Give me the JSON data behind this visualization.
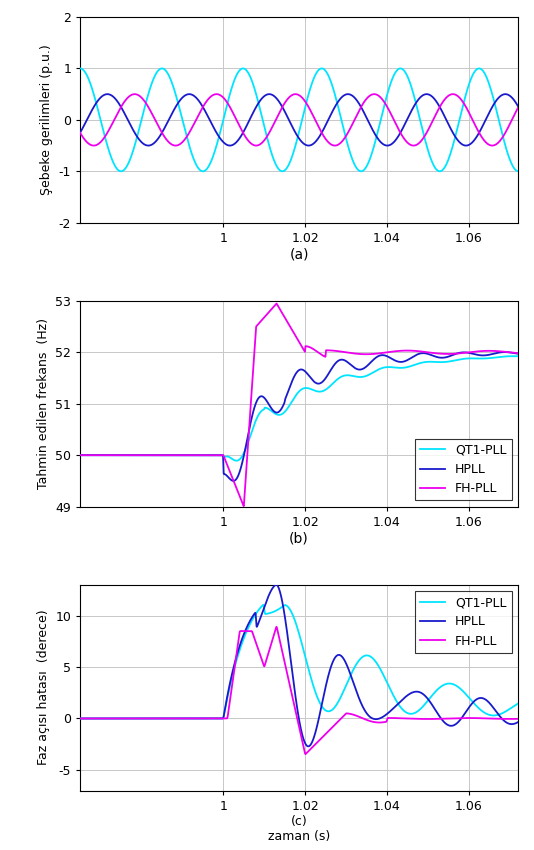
{
  "subplot_a": {
    "ylabel": "Şebeke gerilimleri (p.u.)",
    "xlabel": "(a)",
    "xlim": [
      0.965,
      1.072
    ],
    "ylim": [
      -2,
      2
    ],
    "yticks": [
      -2,
      -1,
      0,
      1,
      2
    ],
    "xticks": [
      1.0,
      1.02,
      1.04,
      1.06
    ],
    "xtick_labels": [
      "1",
      "1.02",
      "1.04",
      "1.06"
    ]
  },
  "subplot_b": {
    "ylabel": "Tahmin edilen frekans  (Hz)",
    "xlabel": "(b)",
    "xlim": [
      0.965,
      1.072
    ],
    "ylim": [
      49,
      53
    ],
    "yticks": [
      49,
      50,
      51,
      52,
      53
    ],
    "xticks": [
      1.0,
      1.02,
      1.04,
      1.06
    ],
    "xtick_labels": [
      "1",
      "1.02",
      "1.04",
      "1.06"
    ],
    "legend": [
      "QT1-PLL",
      "HPLL",
      "FH-PLL"
    ]
  },
  "subplot_c": {
    "ylabel": "Faz açısı hatası  (derece)",
    "xlabel": "(c)",
    "zlabel": "zaman (s)",
    "xlim": [
      0.965,
      1.072
    ],
    "ylim": [
      -7,
      13
    ],
    "yticks": [
      -5,
      0,
      5,
      10
    ],
    "xticks": [
      1.0,
      1.02,
      1.04,
      1.06
    ],
    "xtick_labels": [
      "1",
      "1.02",
      "1.04",
      "1.06"
    ],
    "legend": [
      "QT1-PLL",
      "HPLL",
      "FH-PLL"
    ]
  },
  "colors": {
    "cyan": "#00E5FF",
    "blue": "#1A1ACD",
    "magenta": "#EE00EE"
  },
  "grid_color": "#c8c8c8",
  "bg_color": "#ffffff",
  "tick_label_fontsize": 9,
  "axis_label_fontsize": 9,
  "legend_fontsize": 9,
  "subplot_label_fontsize": 10,
  "linewidth": 1.3
}
